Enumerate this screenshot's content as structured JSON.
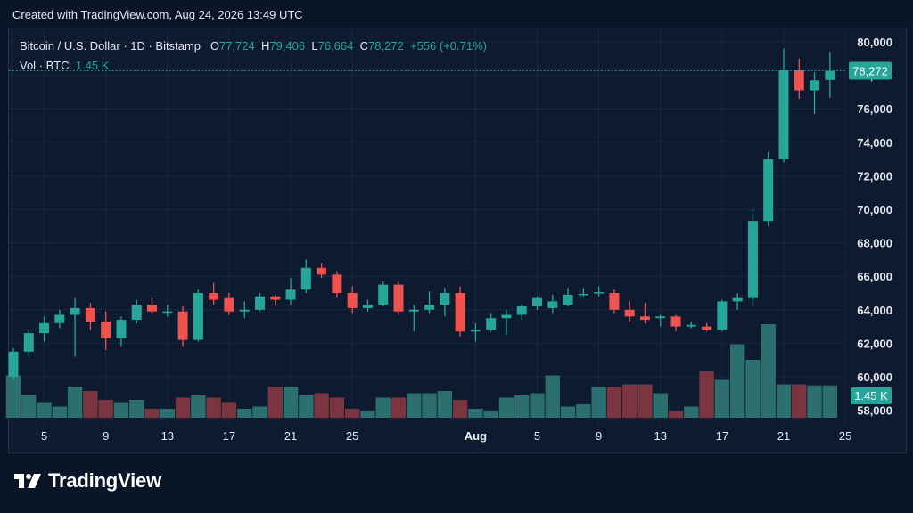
{
  "header": {
    "created_text": "Created with TradingView.com, Aug 24, 2026 13:49 UTC"
  },
  "legend": {
    "symbol": "Bitcoin / U.S. Dollar · 1D · Bitstamp",
    "o_label": "O",
    "o_value": "77,724",
    "h_label": "H",
    "h_value": "79,406",
    "l_label": "L",
    "l_value": "76,664",
    "c_label": "C",
    "c_value": "78,272",
    "change": "+556 (+0.71%)",
    "vol_label": "Vol · BTC",
    "vol_value": "1.45 K"
  },
  "brand": {
    "name": "TradingView",
    "logo_icon": "tradingview-logo-icon"
  },
  "colors": {
    "background": "#0d1a30",
    "up": "#26a69a",
    "down": "#ef5350",
    "up_volume": "#2b6f6e",
    "down_volume": "#7b3540",
    "grid": "#1a2740",
    "text": "#d1d4dc"
  },
  "chart_data": {
    "type": "candlestick",
    "symbol": "Bitcoin / U.S. Dollar",
    "interval": "1D",
    "exchange": "Bitstamp",
    "ylim": [
      57500,
      80800
    ],
    "y_ticks": [
      58000,
      60000,
      62000,
      64000,
      66000,
      68000,
      70000,
      72000,
      74000,
      76000,
      78000,
      80000
    ],
    "y_tick_labels": [
      "58,000",
      "60,000",
      "62,000",
      "64,000",
      "66,000",
      "68,000",
      "70,000",
      "72,000",
      "74,000",
      "76,000",
      "78,000",
      "80,000"
    ],
    "x_ticks": [
      {
        "day": 2,
        "label": "5"
      },
      {
        "day": 6,
        "label": "9"
      },
      {
        "day": 10,
        "label": "13"
      },
      {
        "day": 14,
        "label": "17"
      },
      {
        "day": 18,
        "label": "21"
      },
      {
        "day": 22,
        "label": "25"
      },
      {
        "day": 30,
        "label": "Aug"
      },
      {
        "day": 34,
        "label": "5"
      },
      {
        "day": 38,
        "label": "9"
      },
      {
        "day": 42,
        "label": "13"
      },
      {
        "day": 46,
        "label": "17"
      },
      {
        "day": 50,
        "label": "21"
      },
      {
        "day": 54,
        "label": "25"
      }
    ],
    "last_price": 78272,
    "last_price_label": "78,272",
    "last_volume_label": "1.45 K",
    "candles": [
      {
        "day": 0,
        "o": 60000,
        "h": 61700,
        "l": 59800,
        "c": 61500
      },
      {
        "day": 1,
        "o": 61500,
        "h": 62800,
        "l": 61200,
        "c": 62600
      },
      {
        "day": 2,
        "o": 62600,
        "h": 63600,
        "l": 62100,
        "c": 63200
      },
      {
        "day": 3,
        "o": 63200,
        "h": 64000,
        "l": 62900,
        "c": 63700
      },
      {
        "day": 4,
        "o": 63700,
        "h": 64700,
        "l": 61200,
        "c": 64100
      },
      {
        "day": 5,
        "o": 64100,
        "h": 64400,
        "l": 62800,
        "c": 63300
      },
      {
        "day": 6,
        "o": 63300,
        "h": 63900,
        "l": 61600,
        "c": 62300
      },
      {
        "day": 7,
        "o": 62300,
        "h": 63600,
        "l": 61800,
        "c": 63400
      },
      {
        "day": 8,
        "o": 63400,
        "h": 64600,
        "l": 63200,
        "c": 64300
      },
      {
        "day": 9,
        "o": 64300,
        "h": 64700,
        "l": 63800,
        "c": 63900
      },
      {
        "day": 10,
        "o": 63900,
        "h": 64300,
        "l": 63600,
        "c": 63900
      },
      {
        "day": 11,
        "o": 63900,
        "h": 64200,
        "l": 61800,
        "c": 62200
      },
      {
        "day": 12,
        "o": 62200,
        "h": 65200,
        "l": 62100,
        "c": 65000
      },
      {
        "day": 13,
        "o": 65000,
        "h": 65600,
        "l": 64300,
        "c": 64600
      },
      {
        "day": 14,
        "o": 64700,
        "h": 65000,
        "l": 63700,
        "c": 63900
      },
      {
        "day": 15,
        "o": 63900,
        "h": 64500,
        "l": 63500,
        "c": 64000
      },
      {
        "day": 16,
        "o": 64000,
        "h": 65000,
        "l": 63900,
        "c": 64800
      },
      {
        "day": 17,
        "o": 64800,
        "h": 64900,
        "l": 64300,
        "c": 64600
      },
      {
        "day": 18,
        "o": 64600,
        "h": 65900,
        "l": 64300,
        "c": 65200
      },
      {
        "day": 19,
        "o": 65200,
        "h": 67000,
        "l": 65000,
        "c": 66500
      },
      {
        "day": 20,
        "o": 66500,
        "h": 66800,
        "l": 65900,
        "c": 66100
      },
      {
        "day": 21,
        "o": 66100,
        "h": 66300,
        "l": 64700,
        "c": 65000
      },
      {
        "day": 22,
        "o": 65000,
        "h": 65400,
        "l": 63800,
        "c": 64100
      },
      {
        "day": 23,
        "o": 64100,
        "h": 64600,
        "l": 63900,
        "c": 64300
      },
      {
        "day": 24,
        "o": 64300,
        "h": 65700,
        "l": 64200,
        "c": 65500
      },
      {
        "day": 25,
        "o": 65500,
        "h": 65700,
        "l": 63700,
        "c": 63900
      },
      {
        "day": 26,
        "o": 63900,
        "h": 64300,
        "l": 62700,
        "c": 64000
      },
      {
        "day": 27,
        "o": 64000,
        "h": 65100,
        "l": 63800,
        "c": 64300
      },
      {
        "day": 28,
        "o": 64300,
        "h": 65300,
        "l": 63600,
        "c": 65000
      },
      {
        "day": 29,
        "o": 65000,
        "h": 65400,
        "l": 62400,
        "c": 62700
      },
      {
        "day": 30,
        "o": 62700,
        "h": 63200,
        "l": 62100,
        "c": 62800
      },
      {
        "day": 31,
        "o": 62800,
        "h": 63800,
        "l": 62700,
        "c": 63500
      },
      {
        "day": 32,
        "o": 63500,
        "h": 64000,
        "l": 62500,
        "c": 63700
      },
      {
        "day": 33,
        "o": 63700,
        "h": 64300,
        "l": 63400,
        "c": 64200
      },
      {
        "day": 34,
        "o": 64200,
        "h": 64800,
        "l": 64000,
        "c": 64700
      },
      {
        "day": 35,
        "o": 64100,
        "h": 64900,
        "l": 63800,
        "c": 64500
      },
      {
        "day": 36,
        "o": 64300,
        "h": 65300,
        "l": 64200,
        "c": 64900
      },
      {
        "day": 37,
        "o": 64900,
        "h": 65300,
        "l": 64800,
        "c": 64950
      },
      {
        "day": 38,
        "o": 65000,
        "h": 65400,
        "l": 64800,
        "c": 65050
      },
      {
        "day": 39,
        "o": 65000,
        "h": 65200,
        "l": 63800,
        "c": 64000
      },
      {
        "day": 40,
        "o": 64000,
        "h": 64500,
        "l": 63300,
        "c": 63600
      },
      {
        "day": 41,
        "o": 63600,
        "h": 64400,
        "l": 63200,
        "c": 63400
      },
      {
        "day": 42,
        "o": 63500,
        "h": 63700,
        "l": 63000,
        "c": 63600
      },
      {
        "day": 43,
        "o": 63600,
        "h": 63700,
        "l": 62700,
        "c": 63000
      },
      {
        "day": 44,
        "o": 63000,
        "h": 63300,
        "l": 62900,
        "c": 63100
      },
      {
        "day": 45,
        "o": 63000,
        "h": 63200,
        "l": 62700,
        "c": 62800
      },
      {
        "day": 46,
        "o": 62800,
        "h": 64600,
        "l": 62700,
        "c": 64500
      },
      {
        "day": 47,
        "o": 64500,
        "h": 65000,
        "l": 64000,
        "c": 64700
      },
      {
        "day": 48,
        "o": 64700,
        "h": 70000,
        "l": 64200,
        "c": 69300
      },
      {
        "day": 49,
        "o": 69300,
        "h": 73400,
        "l": 69000,
        "c": 73000
      },
      {
        "day": 50,
        "o": 73000,
        "h": 79600,
        "l": 72800,
        "c": 78300
      },
      {
        "day": 51,
        "o": 78300,
        "h": 79000,
        "l": 76600,
        "c": 77100
      },
      {
        "day": 52,
        "o": 77100,
        "h": 78200,
        "l": 75700,
        "c": 77700
      },
      {
        "day": 53,
        "o": 77724,
        "h": 79406,
        "l": 76664,
        "c": 78272
      }
    ],
    "volumes": [
      1.9,
      1.0,
      0.7,
      0.5,
      1.4,
      1.2,
      0.8,
      0.7,
      0.8,
      0.4,
      0.4,
      0.9,
      1.0,
      0.9,
      0.7,
      0.4,
      0.5,
      1.4,
      1.4,
      1.0,
      1.1,
      0.9,
      0.4,
      0.3,
      0.9,
      0.9,
      1.1,
      1.1,
      1.2,
      0.8,
      0.4,
      0.3,
      0.9,
      1.0,
      1.1,
      1.9,
      0.5,
      0.6,
      1.4,
      1.4,
      1.5,
      1.5,
      1.1,
      0.3,
      0.5,
      2.1,
      1.7,
      3.3,
      2.6,
      4.2,
      1.5,
      1.5,
      1.45,
      1.45
    ],
    "volume_ticks": [
      1.45
    ],
    "volume_max": 4.2
  }
}
